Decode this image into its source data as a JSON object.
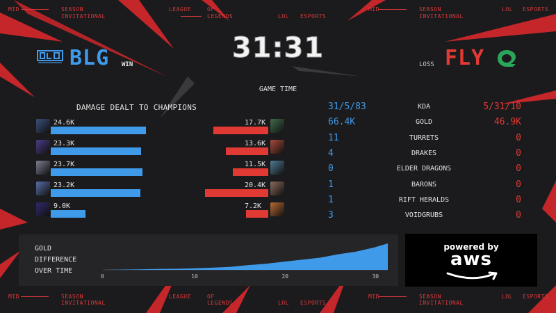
{
  "ticker": {
    "top": [
      {
        "text": "MID",
        "x": 0
      },
      {
        "text": "SEASON",
        "x": 0
      },
      {
        "text": "INVITATIONAL",
        "x": 0
      },
      {
        "text": "LEAGUE",
        "x": 0
      },
      {
        "text": "OF",
        "x": 0
      },
      {
        "text": "LEGENDS",
        "x": 0
      },
      {
        "text": "LOL",
        "x": 0
      },
      {
        "text": "ESPORTS",
        "x": 0
      }
    ],
    "bottom_words": [
      "MID",
      "SEASON",
      "INVITATIONAL",
      "LEAGUE",
      "OF",
      "LEGENDS",
      "LOL",
      "ESPORTS"
    ]
  },
  "timer": "31:31",
  "game_time_label": "GAME TIME",
  "teams": {
    "blue": {
      "name": "BLG",
      "result": "WIN",
      "logo_text": "BLG",
      "color": "#3f9bea"
    },
    "red": {
      "name": "FLY",
      "result": "LOSS",
      "logo_color": "#2aa55a",
      "color": "#e13a34"
    }
  },
  "damage_title": "DAMAGE DEALT TO CHAMPIONS",
  "damage": {
    "max": 24.6,
    "blue": [
      {
        "value": 24.6,
        "label": "24.6K",
        "champ_color": "#3a4f7a"
      },
      {
        "value": 23.3,
        "label": "23.3K",
        "champ_color": "#4b3b85"
      },
      {
        "value": 23.7,
        "label": "23.7K",
        "champ_color": "#7a7d8f"
      },
      {
        "value": 23.2,
        "label": "23.2K",
        "champ_color": "#5a6fa8"
      },
      {
        "value": 9.0,
        "label": "9.0K",
        "champ_color": "#2e2a6a"
      }
    ],
    "red": [
      {
        "value": 17.7,
        "label": "17.7K",
        "champ_color": "#3f6a4a"
      },
      {
        "value": 13.6,
        "label": "13.6K",
        "champ_color": "#a84a3a"
      },
      {
        "value": 11.5,
        "label": "11.5K",
        "champ_color": "#4e7b92"
      },
      {
        "value": 20.4,
        "label": "20.4K",
        "champ_color": "#8a6a5a"
      },
      {
        "value": 7.2,
        "label": "7.2K",
        "champ_color": "#b86a32"
      }
    ]
  },
  "stats": [
    {
      "label": "KDA",
      "blue": "31/5/83",
      "red": "5/31/10"
    },
    {
      "label": "GOLD",
      "blue": "66.4K",
      "red": "46.9K"
    },
    {
      "label": "TURRETS",
      "blue": "11",
      "red": "0"
    },
    {
      "label": "DRAKES",
      "blue": "4",
      "red": "0"
    },
    {
      "label": "ELDER DRAGONS",
      "blue": "0",
      "red": "0"
    },
    {
      "label": "BARONS",
      "blue": "1",
      "red": "0"
    },
    {
      "label": "RIFT HERALDS",
      "blue": "1",
      "red": "0"
    },
    {
      "label": "VOIDGRUBS",
      "blue": "3",
      "red": "0"
    }
  ],
  "gold_label": [
    "GOLD",
    "DIFFERENCE",
    "OVER TIME"
  ],
  "chart_data": {
    "type": "area",
    "x": [
      0,
      2,
      4,
      6,
      8,
      10,
      12,
      14,
      16,
      18,
      20,
      22,
      24,
      26,
      28,
      30,
      31.5
    ],
    "values": [
      0,
      0.2,
      0.4,
      0.6,
      0.8,
      1.2,
      1.6,
      2.2,
      3.5,
      4.5,
      6.0,
      7.5,
      9.0,
      11.5,
      13.5,
      16.5,
      19.5
    ],
    "xticks": [
      "0",
      "10",
      "20",
      "30"
    ],
    "xtick_values": [
      0,
      10,
      20,
      30
    ],
    "xlim": [
      0,
      31.5
    ],
    "ylim": [
      0,
      19.5
    ],
    "color": "#3f9bea"
  },
  "sponsor": {
    "powered": "powered by",
    "brand": "aws"
  }
}
